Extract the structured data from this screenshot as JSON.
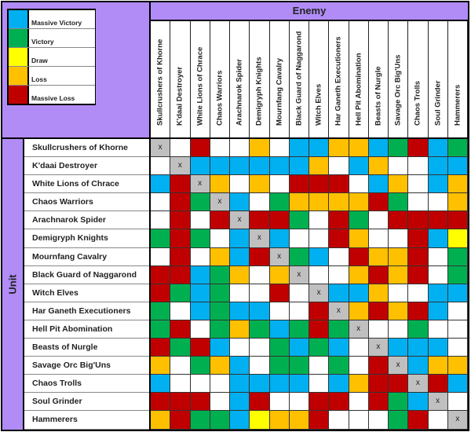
{
  "legend": [
    {
      "key": "B",
      "label": "Massive Victory",
      "color": "#00b0f0"
    },
    {
      "key": "G",
      "label": "Victory",
      "color": "#00b050"
    },
    {
      "key": "Y",
      "label": "Draw",
      "color": "#ffff00"
    },
    {
      "key": "O",
      "label": "Loss",
      "color": "#ffc000"
    },
    {
      "key": "R",
      "label": "Massive Loss",
      "color": "#c00000"
    }
  ],
  "colors": {
    "W": "#ffffff",
    "X": "#c0c0c0",
    "header_bg": "#b18cf7"
  },
  "enemy_label": "Enemy",
  "unit_label": "Unit",
  "self_marker": "x",
  "columns": [
    "Skullcrushers of Khorne",
    "K'daai Destroyer",
    "White Lions of Chrace",
    "Chaos Warriors",
    "Arachnarok Spider",
    "Demigryph Knights",
    "Mournfang Cavalry",
    "Black Guard of Naggarond",
    "Witch Elves",
    "Har Ganeth Executioners",
    "Hell Pit Abomination",
    "Beasts of Nurgle",
    "Savage Orc Big'Uns",
    "Chaos Trolls",
    "Soul Grinder",
    "Hammerers"
  ],
  "rows": [
    {
      "label": "Skullcrushers of Khorne",
      "cells": [
        "X",
        "W",
        "R",
        "W",
        "W",
        "O",
        "W",
        "B",
        "B",
        "O",
        "O",
        "B",
        "G",
        "R",
        "B",
        "G"
      ]
    },
    {
      "label": "K'daai Destroyer",
      "cells": [
        "W",
        "X",
        "B",
        "B",
        "B",
        "B",
        "B",
        "B",
        "O",
        "W",
        "B",
        "O",
        "W",
        "W",
        "B",
        "B"
      ]
    },
    {
      "label": "White Lions of Chrace",
      "cells": [
        "B",
        "R",
        "X",
        "O",
        "W",
        "O",
        "W",
        "R",
        "R",
        "R",
        "W",
        "B",
        "O",
        "W",
        "B",
        "O"
      ]
    },
    {
      "label": "Chaos Warriors",
      "cells": [
        "W",
        "R",
        "G",
        "X",
        "B",
        "W",
        "G",
        "O",
        "O",
        "O",
        "O",
        "R",
        "G",
        "W",
        "W",
        "O"
      ]
    },
    {
      "label": "Arachnarok Spider",
      "cells": [
        "W",
        "R",
        "W",
        "R",
        "X",
        "R",
        "R",
        "G",
        "W",
        "R",
        "G",
        "W",
        "R",
        "R",
        "R",
        "R"
      ]
    },
    {
      "label": "Demigryph Knights",
      "cells": [
        "G",
        "R",
        "G",
        "W",
        "B",
        "X",
        "B",
        "W",
        "W",
        "R",
        "O",
        "W",
        "W",
        "R",
        "B",
        "Y"
      ]
    },
    {
      "label": "Mournfang Cavalry",
      "cells": [
        "W",
        "R",
        "W",
        "O",
        "B",
        "R",
        "X",
        "G",
        "B",
        "W",
        "R",
        "O",
        "O",
        "R",
        "W",
        "G"
      ]
    },
    {
      "label": "Black Guard of Naggarond",
      "cells": [
        "R",
        "R",
        "B",
        "G",
        "O",
        "W",
        "O",
        "X",
        "W",
        "W",
        "O",
        "R",
        "O",
        "R",
        "W",
        "G"
      ]
    },
    {
      "label": "Witch Elves",
      "cells": [
        "R",
        "G",
        "B",
        "G",
        "W",
        "W",
        "R",
        "W",
        "X",
        "B",
        "B",
        "O",
        "W",
        "W",
        "B",
        "B"
      ]
    },
    {
      "label": "Har Ganeth Executioners",
      "cells": [
        "G",
        "W",
        "B",
        "G",
        "B",
        "B",
        "W",
        "W",
        "R",
        "X",
        "O",
        "R",
        "O",
        "R",
        "B",
        "W"
      ]
    },
    {
      "label": "Hell Pit Abomination",
      "cells": [
        "G",
        "R",
        "W",
        "G",
        "O",
        "G",
        "B",
        "G",
        "R",
        "G",
        "X",
        "W",
        "W",
        "G",
        "W",
        "W"
      ]
    },
    {
      "label": "Beasts of Nurgle",
      "cells": [
        "R",
        "G",
        "R",
        "B",
        "W",
        "W",
        "G",
        "B",
        "G",
        "B",
        "W",
        "X",
        "B",
        "B",
        "B",
        "W"
      ]
    },
    {
      "label": "Savage Orc Big'Uns",
      "cells": [
        "O",
        "W",
        "G",
        "O",
        "B",
        "W",
        "G",
        "G",
        "W",
        "G",
        "W",
        "R",
        "X",
        "B",
        "O",
        "O"
      ]
    },
    {
      "label": "Chaos Trolls",
      "cells": [
        "B",
        "W",
        "W",
        "W",
        "B",
        "B",
        "B",
        "B",
        "W",
        "B",
        "O",
        "R",
        "R",
        "X",
        "R",
        "B"
      ]
    },
    {
      "label": "Soul Grinder",
      "cells": [
        "R",
        "R",
        "R",
        "W",
        "B",
        "R",
        "W",
        "W",
        "R",
        "R",
        "W",
        "R",
        "G",
        "B",
        "X",
        "W"
      ]
    },
    {
      "label": "Hammerers",
      "cells": [
        "O",
        "R",
        "G",
        "G",
        "B",
        "Y",
        "O",
        "O",
        "R",
        "W",
        "W",
        "W",
        "G",
        "R",
        "W",
        "X"
      ]
    }
  ]
}
